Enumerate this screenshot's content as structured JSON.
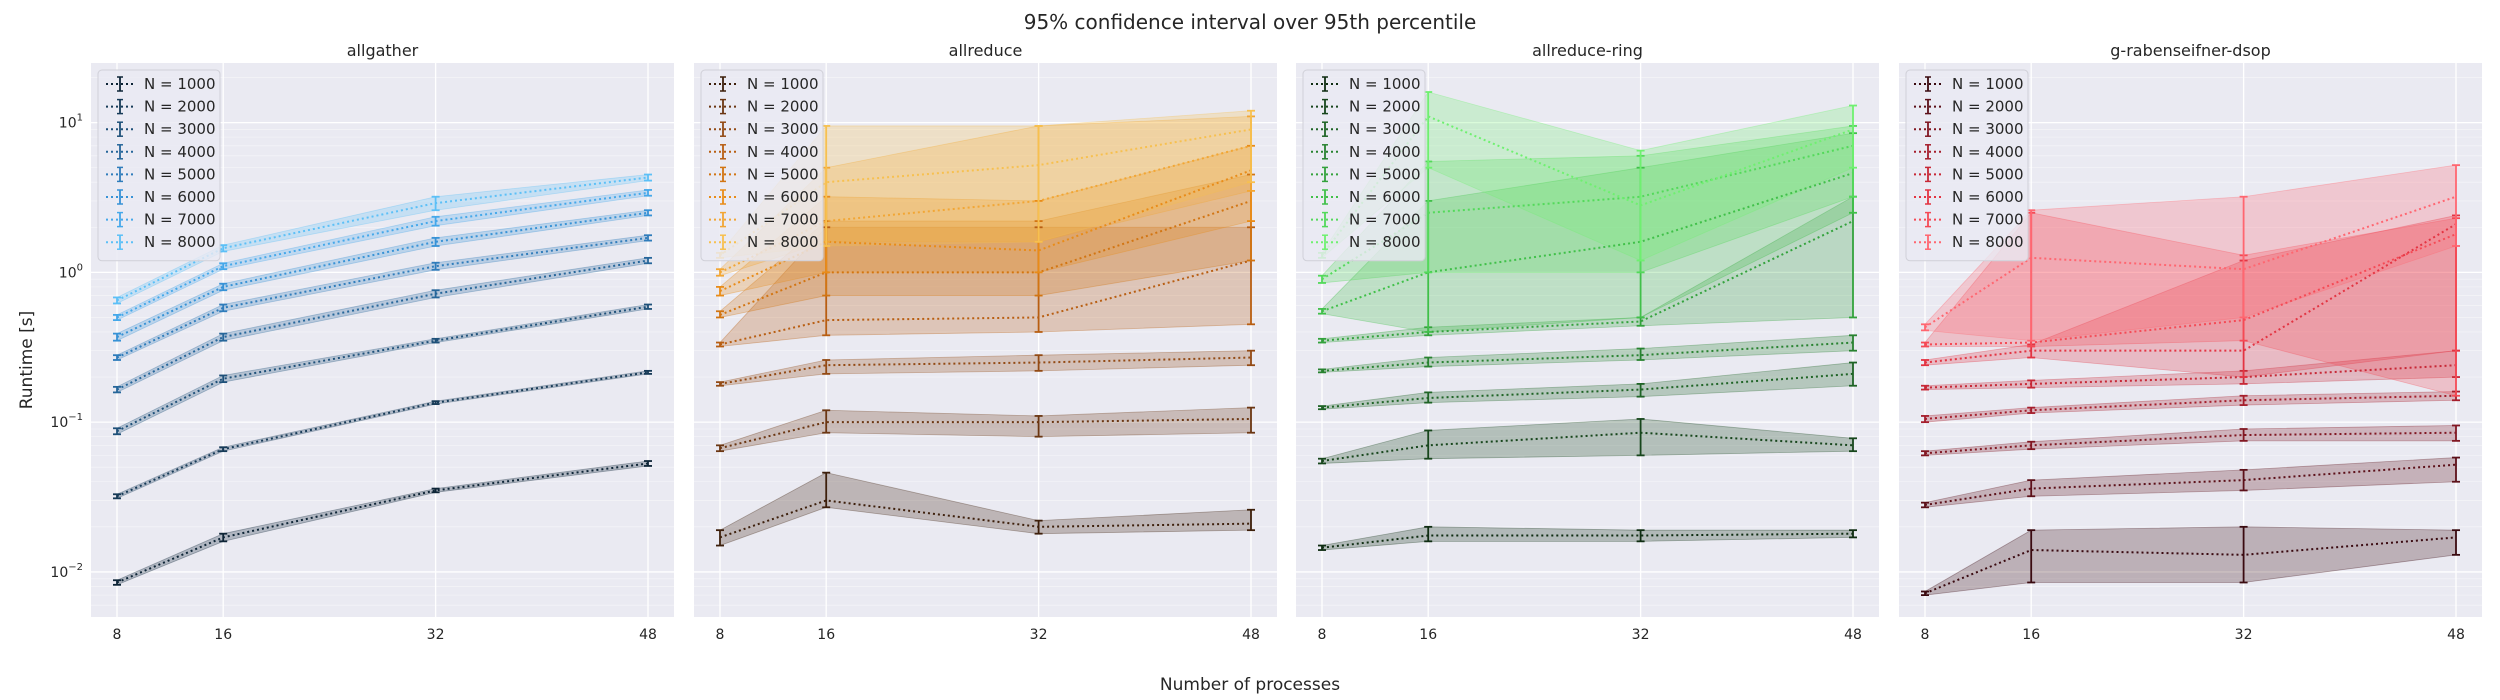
{
  "figure": {
    "title": "95% confidence interval over 95th percentile",
    "xlabel": "Number of processes",
    "ylabel": "Runtime [s]"
  },
  "chart_data": [
    {
      "type": "line",
      "title": "allgather",
      "x": [
        8,
        16,
        32,
        48
      ],
      "xticks": [
        "8",
        "16",
        "32",
        "48"
      ],
      "yscale": "log",
      "ylim": [
        0.005,
        25
      ],
      "yticks": [
        "10^-2",
        "10^-1",
        "10^0",
        "10^1"
      ],
      "grid": true,
      "legend": "top-left",
      "colors": [
        "#0d2436",
        "#163a57",
        "#1e5079",
        "#26669a",
        "#2f7cbb",
        "#3792d6",
        "#45a8ea",
        "#5cc0f7"
      ],
      "series": [
        {
          "name": "N = 1000",
          "values": [
            0.0085,
            0.017,
            0.035,
            0.053
          ],
          "ci_low": [
            0.0082,
            0.016,
            0.034,
            0.051
          ],
          "ci_high": [
            0.0088,
            0.018,
            0.036,
            0.055
          ]
        },
        {
          "name": "N = 2000",
          "values": [
            0.032,
            0.066,
            0.135,
            0.215
          ],
          "ci_low": [
            0.031,
            0.064,
            0.132,
            0.21
          ],
          "ci_high": [
            0.033,
            0.068,
            0.138,
            0.22
          ]
        },
        {
          "name": "N = 3000",
          "values": [
            0.087,
            0.195,
            0.35,
            0.59
          ],
          "ci_low": [
            0.083,
            0.185,
            0.34,
            0.57
          ],
          "ci_high": [
            0.091,
            0.205,
            0.36,
            0.61
          ]
        },
        {
          "name": "N = 4000",
          "values": [
            0.165,
            0.37,
            0.72,
            1.2
          ],
          "ci_low": [
            0.158,
            0.35,
            0.68,
            1.15
          ],
          "ci_high": [
            0.172,
            0.39,
            0.76,
            1.25
          ]
        },
        {
          "name": "N = 5000",
          "values": [
            0.27,
            0.58,
            1.1,
            1.7
          ],
          "ci_low": [
            0.26,
            0.55,
            1.04,
            1.63
          ],
          "ci_high": [
            0.28,
            0.61,
            1.16,
            1.77
          ]
        },
        {
          "name": "N = 6000",
          "values": [
            0.37,
            0.8,
            1.6,
            2.5
          ],
          "ci_low": [
            0.35,
            0.76,
            1.5,
            2.4
          ],
          "ci_high": [
            0.39,
            0.84,
            1.7,
            2.6
          ]
        },
        {
          "name": "N = 7000",
          "values": [
            0.5,
            1.1,
            2.2,
            3.4
          ],
          "ci_low": [
            0.48,
            1.05,
            2.05,
            3.25
          ],
          "ci_high": [
            0.52,
            1.15,
            2.35,
            3.55
          ]
        },
        {
          "name": "N = 8000",
          "values": [
            0.65,
            1.45,
            2.9,
            4.3
          ],
          "ci_low": [
            0.62,
            1.38,
            2.6,
            4.1
          ],
          "ci_high": [
            0.68,
            1.52,
            3.2,
            4.5
          ]
        }
      ]
    },
    {
      "type": "line",
      "title": "allreduce",
      "x": [
        8,
        16,
        32,
        48
      ],
      "xticks": [
        "8",
        "16",
        "32",
        "48"
      ],
      "yscale": "log",
      "ylim": [
        0.005,
        25
      ],
      "grid": true,
      "legend": "top-left",
      "colors": [
        "#3d1f0b",
        "#6b3612",
        "#934a14",
        "#b85e12",
        "#d27512",
        "#e98c18",
        "#f2a634",
        "#f7c04f"
      ],
      "series": [
        {
          "name": "N = 1000",
          "values": [
            0.017,
            0.03,
            0.02,
            0.021
          ],
          "ci_low": [
            0.015,
            0.027,
            0.018,
            0.019
          ],
          "ci_high": [
            0.019,
            0.046,
            0.022,
            0.026
          ]
        },
        {
          "name": "N = 2000",
          "values": [
            0.067,
            0.1,
            0.1,
            0.105
          ],
          "ci_low": [
            0.064,
            0.085,
            0.08,
            0.085
          ],
          "ci_high": [
            0.07,
            0.12,
            0.11,
            0.125
          ]
        },
        {
          "name": "N = 3000",
          "values": [
            0.18,
            0.24,
            0.25,
            0.27
          ],
          "ci_low": [
            0.175,
            0.21,
            0.22,
            0.24
          ],
          "ci_high": [
            0.185,
            0.26,
            0.28,
            0.3
          ]
        },
        {
          "name": "N = 4000",
          "values": [
            0.33,
            0.48,
            0.5,
            1.2
          ],
          "ci_low": [
            0.32,
            0.38,
            0.4,
            0.45
          ],
          "ci_high": [
            0.34,
            2.0,
            2.0,
            2.0
          ]
        },
        {
          "name": "N = 5000",
          "values": [
            0.52,
            1.0,
            1.0,
            3.0
          ],
          "ci_low": [
            0.5,
            0.7,
            0.7,
            1.2
          ],
          "ci_high": [
            0.55,
            2.2,
            2.2,
            4.5
          ]
        },
        {
          "name": "N = 6000",
          "values": [
            0.75,
            1.6,
            1.4,
            4.8
          ],
          "ci_low": [
            0.7,
            1.0,
            1.0,
            2.2
          ],
          "ci_high": [
            0.8,
            3.2,
            3.0,
            7.0
          ]
        },
        {
          "name": "N = 7000",
          "values": [
            1.0,
            2.2,
            3.0,
            7.0
          ],
          "ci_low": [
            0.95,
            1.6,
            1.6,
            3.5
          ],
          "ci_high": [
            1.05,
            5.0,
            9.5,
            11.0
          ]
        },
        {
          "name": "N = 8000",
          "values": [
            1.3,
            4.0,
            5.2,
            9.0
          ],
          "ci_low": [
            1.25,
            1.5,
            1.6,
            4.0
          ],
          "ci_high": [
            1.35,
            9.5,
            9.5,
            12.0
          ]
        }
      ]
    },
    {
      "type": "line",
      "title": "allreduce-ring",
      "x": [
        8,
        16,
        32,
        48
      ],
      "xticks": [
        "8",
        "16",
        "32",
        "48"
      ],
      "yscale": "log",
      "ylim": [
        0.005,
        25
      ],
      "grid": true,
      "legend": "top-left",
      "colors": [
        "#0f2d12",
        "#17461c",
        "#1f6426",
        "#288230",
        "#33a23c",
        "#40c049",
        "#53d95a",
        "#6ff070"
      ],
      "series": [
        {
          "name": "N = 1000",
          "values": [
            0.0145,
            0.0175,
            0.0175,
            0.018
          ],
          "ci_low": [
            0.014,
            0.016,
            0.016,
            0.017
          ],
          "ci_high": [
            0.015,
            0.02,
            0.019,
            0.019
          ]
        },
        {
          "name": "N = 2000",
          "values": [
            0.055,
            0.07,
            0.085,
            0.07
          ],
          "ci_low": [
            0.053,
            0.057,
            0.06,
            0.064
          ],
          "ci_high": [
            0.057,
            0.088,
            0.105,
            0.078
          ]
        },
        {
          "name": "N = 3000",
          "values": [
            0.125,
            0.145,
            0.165,
            0.21
          ],
          "ci_low": [
            0.122,
            0.135,
            0.148,
            0.175
          ],
          "ci_high": [
            0.128,
            0.158,
            0.18,
            0.25
          ]
        },
        {
          "name": "N = 4000",
          "values": [
            0.22,
            0.25,
            0.28,
            0.34
          ],
          "ci_low": [
            0.215,
            0.235,
            0.26,
            0.3
          ],
          "ci_high": [
            0.225,
            0.27,
            0.31,
            0.38
          ]
        },
        {
          "name": "N = 5000",
          "values": [
            0.35,
            0.4,
            0.47,
            2.2
          ],
          "ci_low": [
            0.34,
            0.38,
            0.44,
            0.5
          ],
          "ci_high": [
            0.36,
            0.43,
            0.5,
            3.2
          ]
        },
        {
          "name": "N = 6000",
          "values": [
            0.55,
            1.0,
            1.6,
            4.6
          ],
          "ci_low": [
            0.53,
            0.4,
            0.5,
            2.5
          ],
          "ci_high": [
            0.57,
            3.0,
            5.0,
            8.5
          ]
        },
        {
          "name": "N = 7000",
          "values": [
            0.9,
            2.5,
            3.2,
            7.0
          ],
          "ci_low": [
            0.85,
            1.0,
            1.0,
            3.2
          ],
          "ci_high": [
            0.95,
            5.5,
            6.0,
            9.5
          ]
        },
        {
          "name": "N = 8000",
          "values": [
            1.3,
            11.0,
            2.8,
            9.0
          ],
          "ci_low": [
            1.25,
            5.0,
            1.2,
            5.0
          ],
          "ci_high": [
            1.35,
            16.0,
            6.5,
            13.0
          ]
        }
      ]
    },
    {
      "type": "line",
      "title": "g-rabenseifner-dsop",
      "x": [
        8,
        16,
        32,
        48
      ],
      "xticks": [
        "8",
        "16",
        "32",
        "48"
      ],
      "yscale": "log",
      "ylim": [
        0.005,
        25
      ],
      "grid": true,
      "legend": "top-left",
      "colors": [
        "#3a0a10",
        "#5c1019",
        "#811722",
        "#a51e2c",
        "#c72836",
        "#e33442",
        "#f54a55",
        "#ff6670"
      ],
      "series": [
        {
          "name": "N = 1000",
          "values": [
            0.0072,
            0.014,
            0.013,
            0.017
          ],
          "ci_low": [
            0.007,
            0.0085,
            0.0085,
            0.013
          ],
          "ci_high": [
            0.0074,
            0.019,
            0.02,
            0.019
          ]
        },
        {
          "name": "N = 2000",
          "values": [
            0.028,
            0.036,
            0.041,
            0.052
          ],
          "ci_low": [
            0.027,
            0.032,
            0.035,
            0.04
          ],
          "ci_high": [
            0.029,
            0.041,
            0.048,
            0.058
          ]
        },
        {
          "name": "N = 3000",
          "values": [
            0.062,
            0.07,
            0.082,
            0.085
          ],
          "ci_low": [
            0.06,
            0.066,
            0.075,
            0.075
          ],
          "ci_high": [
            0.064,
            0.074,
            0.09,
            0.095
          ]
        },
        {
          "name": "N = 4000",
          "values": [
            0.105,
            0.12,
            0.14,
            0.15
          ],
          "ci_low": [
            0.1,
            0.115,
            0.13,
            0.14
          ],
          "ci_high": [
            0.11,
            0.125,
            0.15,
            0.16
          ]
        },
        {
          "name": "N = 5000",
          "values": [
            0.17,
            0.18,
            0.2,
            0.24
          ],
          "ci_low": [
            0.165,
            0.17,
            0.18,
            0.2
          ],
          "ci_high": [
            0.175,
            0.19,
            0.22,
            0.3
          ]
        },
        {
          "name": "N = 6000",
          "values": [
            0.25,
            0.3,
            0.3,
            2.1
          ],
          "ci_low": [
            0.24,
            0.27,
            0.2,
            0.3
          ],
          "ci_high": [
            0.26,
            0.33,
            1.2,
            2.4
          ]
        },
        {
          "name": "N = 7000",
          "values": [
            0.33,
            0.34,
            0.48,
            1.8
          ],
          "ci_low": [
            0.32,
            0.32,
            0.35,
            0.15
          ],
          "ci_high": [
            0.34,
            2.5,
            1.3,
            2.3
          ]
        },
        {
          "name": "N = 8000",
          "values": [
            0.43,
            1.25,
            1.05,
            3.2
          ],
          "ci_low": [
            0.41,
            0.35,
            0.5,
            1.5
          ],
          "ci_high": [
            0.45,
            2.6,
            3.2,
            5.2
          ]
        }
      ]
    }
  ]
}
